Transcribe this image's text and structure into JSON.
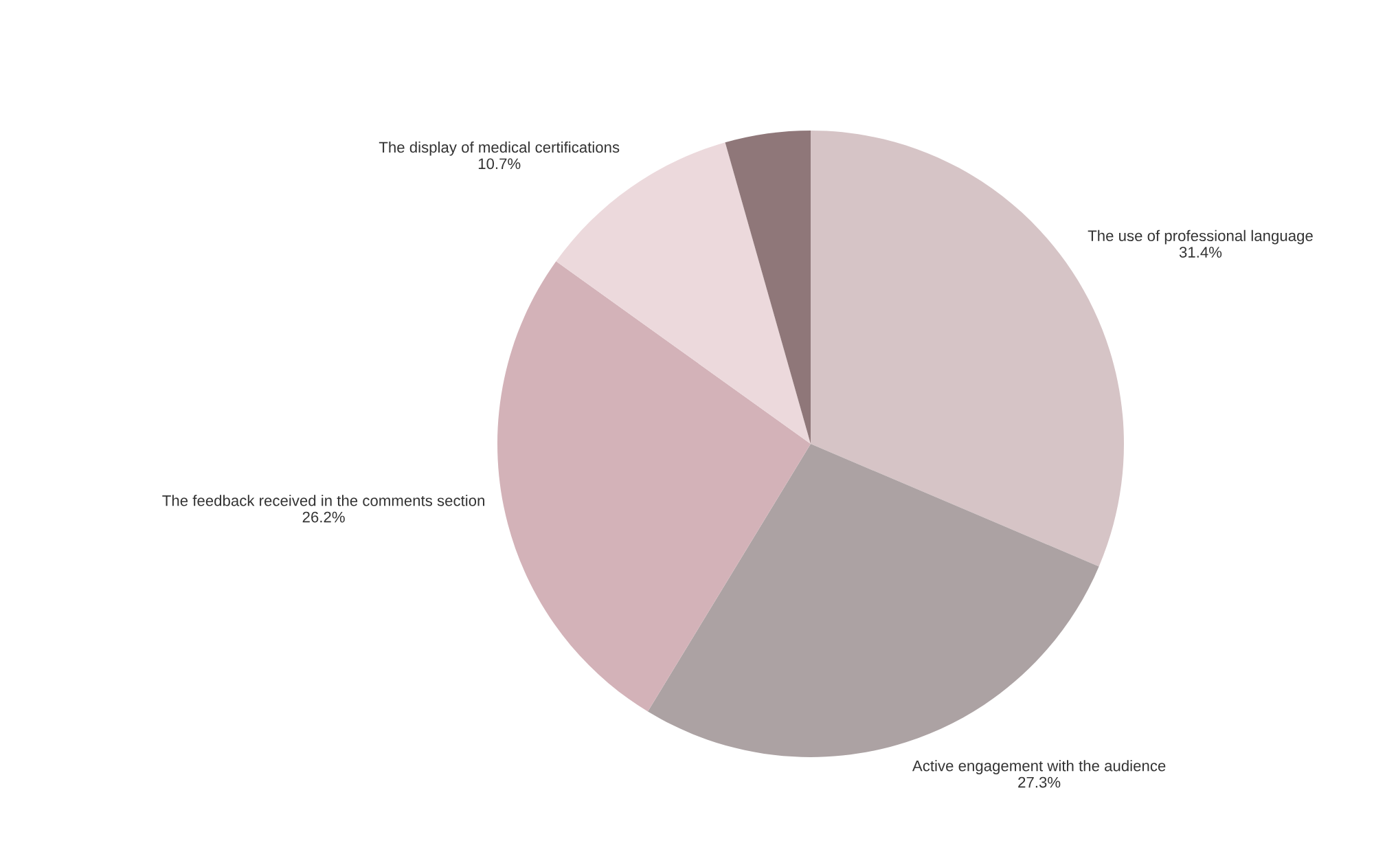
{
  "chart_data": {
    "type": "pie",
    "categories": [
      "The use of professional language",
      "Active engagement with the audience",
      "The feedback received in the comments section",
      "The display of medical certifications",
      null
    ],
    "values": [
      31.4,
      27.3,
      26.2,
      10.7,
      4.4
    ],
    "value_labels": [
      "31.4%",
      "27.3%",
      "26.2%",
      "10.7%",
      null
    ],
    "colors": [
      "#d6c4c6",
      "#aca2a3",
      "#d3b2b8",
      "#ecd9dc",
      "#8f7779"
    ],
    "legend": false
  }
}
